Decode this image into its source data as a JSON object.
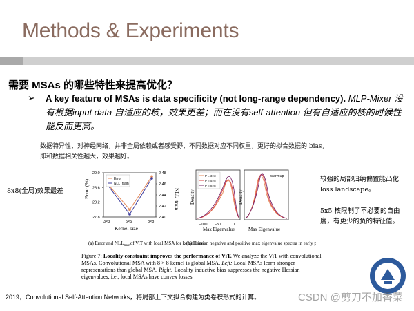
{
  "slide": {
    "title": "Methods & Experiments",
    "question": "需要 MSAs 的哪些特性来提高优化？",
    "bullet_bold": "A key feature of MSAs is data specificity (not long-range dependency).",
    "bullet_italic": "MLP-Mixer 没有根据input data 自适应的核，效果更差；而在没有self-attention 但有自适应的核的时候性能反而更高。",
    "note": "数据特异性，对神经网络，并非全局依赖或者感受野，不同数据对应不同权重，更好的拟合数据的 bias，即和数据相关性越大，效果越好。",
    "left_note": "8x8(全局)效果最差",
    "right_note1": "较强的局部归纳偏置能凸化loss landscape。",
    "right_note2": "5x5 核限制了不必要的自由度，有更少的负的特征值。",
    "footer": "2019，Convolutional Self-Attention Networks，将局部上下文拟合构建为类卷积形式的计算。",
    "watermark": "CSDN @剪刀不加香菜"
  },
  "figure": {
    "sub_a_caption": "(a) Error and NLL",
    "sub_a_caption_sub": "train",
    "sub_a_caption_rest": "of ViT with local MSA for kernel size",
    "sub_b_caption": "(b) Hessian negative and positive max eigenvalue spectra in early phase of training",
    "caption_lead": "Figure 7:",
    "caption_bold": "Locality constraint improves the performance of ViT.",
    "caption_rest": "We analyze the ViT with convolutional MSAs. Convolutional MSA with 8 × 8 kernel is global MSA.",
    "caption_left_label": "Left:",
    "caption_left": "Local MSAs learn stronger representations than global MSA.",
    "caption_right_label": "Right:",
    "caption_right": "Locality inductive bias suppresses the negative Hessian eigenvalues, i.e., local MSAs have convex losses.",
    "panel_b_legend": [
      "P = 3×3",
      "P = 5×5",
      "P = 8×8"
    ],
    "panel_b_warmup": "warmup",
    "panel_b_xlabel": "Max Eigenvalue",
    "panel_b_ylabel": "Density",
    "panel_b_xticks": [
      "−100",
      "−50",
      "0"
    ]
  },
  "chart_data": {
    "type": "line",
    "title": "",
    "xlabel": "Kernel size",
    "ylabel_left": "Error (%)",
    "ylabel_right": "NLL_train",
    "categories": [
      "3×3",
      "5×5",
      "8×8"
    ],
    "ylim_left": [
      27.8,
      29.0
    ],
    "ylim_right": [
      2.4,
      2.48
    ],
    "yticks_left": [
      27.8,
      28.2,
      28.6,
      29.0
    ],
    "yticks_right": [
      2.4,
      2.42,
      2.44,
      2.46,
      2.48
    ],
    "series": [
      {
        "name": "Error",
        "axis": "left",
        "color": "#e58a5a",
        "values": [
          28.7,
          28.0,
          28.9
        ]
      },
      {
        "name": "NLL_train",
        "axis": "right",
        "color": "#3c3c9c",
        "values": [
          2.458,
          2.405,
          2.47
        ]
      }
    ],
    "legend": [
      "Error",
      "NLL_train"
    ]
  }
}
